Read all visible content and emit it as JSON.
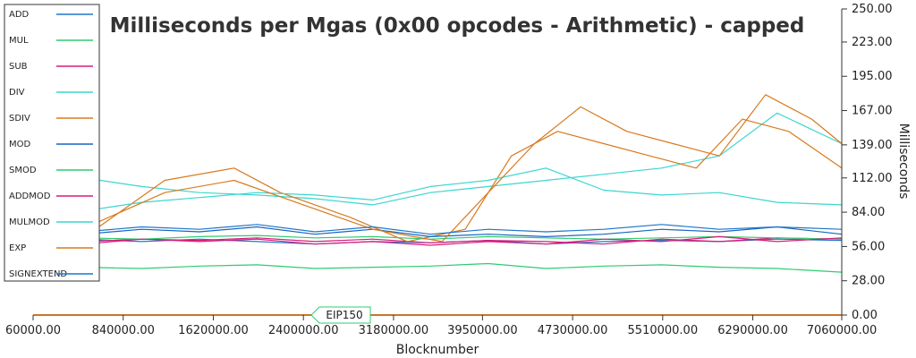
{
  "chart_data": {
    "type": "line",
    "title": "Milliseconds per Mgas (0x00 opcodes - Arithmetic) - capped",
    "xlabel": "Blocknumber",
    "ylabel": "Milliseconds",
    "xlim": [
      60000,
      7060000
    ],
    "ylim": [
      0,
      250
    ],
    "x_ticks": [
      "60000.00",
      "840000.00",
      "1620000.00",
      "2400000.00",
      "3180000.00",
      "3950000.00",
      "4730000.00",
      "5510000.00",
      "6290000.00",
      "7060000.00"
    ],
    "y_ticks": [
      "0.00",
      "28.00",
      "56.00",
      "84.00",
      "112.00",
      "139.00",
      "167.00",
      "195.00",
      "223.00",
      "250.00"
    ],
    "legend_position": "top-left",
    "grid": false,
    "series": [
      {
        "name": "ADD",
        "color": "#1f77c9",
        "points": [
          [
            60000,
            58
          ],
          [
            500000,
            62
          ],
          [
            1000000,
            60
          ],
          [
            1500000,
            62
          ],
          [
            2000000,
            60
          ],
          [
            2500000,
            58
          ],
          [
            3000000,
            60
          ],
          [
            3500000,
            59
          ],
          [
            4000000,
            61
          ],
          [
            4500000,
            58
          ],
          [
            5000000,
            60
          ],
          [
            5500000,
            61
          ],
          [
            6000000,
            60
          ],
          [
            6500000,
            62
          ],
          [
            7060000,
            61
          ]
        ]
      },
      {
        "name": "MUL",
        "color": "#2ecc71",
        "points": [
          [
            60000,
            40
          ],
          [
            500000,
            39
          ],
          [
            1000000,
            38
          ],
          [
            1500000,
            40
          ],
          [
            2000000,
            41
          ],
          [
            2500000,
            38
          ],
          [
            3000000,
            39
          ],
          [
            3500000,
            40
          ],
          [
            4000000,
            42
          ],
          [
            4500000,
            38
          ],
          [
            5000000,
            40
          ],
          [
            5500000,
            41
          ],
          [
            6000000,
            39
          ],
          [
            6500000,
            38
          ],
          [
            7060000,
            35
          ]
        ]
      },
      {
        "name": "SUB",
        "color": "#d81b7a",
        "points": [
          [
            60000,
            56
          ],
          [
            500000,
            60
          ],
          [
            1000000,
            62
          ],
          [
            1500000,
            61
          ],
          [
            2000000,
            63
          ],
          [
            2500000,
            60
          ],
          [
            3000000,
            62
          ],
          [
            3500000,
            59
          ],
          [
            4000000,
            61
          ],
          [
            4500000,
            60
          ],
          [
            5000000,
            58
          ],
          [
            5500000,
            62
          ],
          [
            6000000,
            60
          ],
          [
            6500000,
            63
          ],
          [
            7060000,
            62
          ]
        ]
      },
      {
        "name": "DIV",
        "color": "#3ad6cf",
        "points": [
          [
            60000,
            110
          ],
          [
            500000,
            112
          ],
          [
            1000000,
            105
          ],
          [
            1500000,
            100
          ],
          [
            2000000,
            98
          ],
          [
            2500000,
            95
          ],
          [
            3000000,
            90
          ],
          [
            3500000,
            100
          ],
          [
            4000000,
            105
          ],
          [
            4500000,
            110
          ],
          [
            5000000,
            115
          ],
          [
            5500000,
            120
          ],
          [
            6000000,
            130
          ],
          [
            6500000,
            165
          ],
          [
            7060000,
            140
          ]
        ]
      },
      {
        "name": "SDIV",
        "color": "#d97a1e",
        "points": [
          [
            600000,
            70
          ],
          [
            1200000,
            110
          ],
          [
            1800000,
            120
          ],
          [
            2200000,
            100
          ],
          [
            2800000,
            80
          ],
          [
            3300000,
            60
          ],
          [
            3800000,
            70
          ],
          [
            4200000,
            130
          ],
          [
            4600000,
            150
          ],
          [
            5000000,
            140
          ],
          [
            5400000,
            130
          ],
          [
            5800000,
            120
          ],
          [
            6200000,
            160
          ],
          [
            6600000,
            150
          ],
          [
            7060000,
            120
          ]
        ]
      },
      {
        "name": "MOD",
        "color": "#1565c0",
        "points": [
          [
            60000,
            60
          ],
          [
            500000,
            66
          ],
          [
            1000000,
            70
          ],
          [
            1500000,
            68
          ],
          [
            2000000,
            72
          ],
          [
            2500000,
            66
          ],
          [
            3000000,
            70
          ],
          [
            3500000,
            64
          ],
          [
            4000000,
            66
          ],
          [
            4500000,
            64
          ],
          [
            5000000,
            66
          ],
          [
            5500000,
            70
          ],
          [
            6000000,
            68
          ],
          [
            6500000,
            72
          ],
          [
            7060000,
            66
          ]
        ]
      },
      {
        "name": "SMOD",
        "color": "#2ecc71",
        "points": [
          [
            60000,
            64
          ],
          [
            500000,
            63
          ],
          [
            1000000,
            62
          ],
          [
            1500000,
            64
          ],
          [
            2000000,
            65
          ],
          [
            2500000,
            63
          ],
          [
            3000000,
            64
          ],
          [
            3500000,
            62
          ],
          [
            4000000,
            64
          ],
          [
            4500000,
            63
          ],
          [
            5000000,
            62
          ],
          [
            5500000,
            63
          ],
          [
            6000000,
            64
          ],
          [
            6500000,
            63
          ],
          [
            7060000,
            62
          ]
        ]
      },
      {
        "name": "ADDMOD",
        "color": "#d81b7a",
        "points": [
          [
            60000,
            54
          ],
          [
            500000,
            58
          ],
          [
            1000000,
            62
          ],
          [
            1500000,
            60
          ],
          [
            2000000,
            62
          ],
          [
            2500000,
            58
          ],
          [
            3000000,
            60
          ],
          [
            3500000,
            57
          ],
          [
            4000000,
            60
          ],
          [
            4500000,
            58
          ],
          [
            5000000,
            62
          ],
          [
            5500000,
            60
          ],
          [
            6000000,
            64
          ],
          [
            6500000,
            60
          ],
          [
            7060000,
            63
          ]
        ]
      },
      {
        "name": "MULMOD",
        "color": "#3ad6cf",
        "points": [
          [
            60000,
            80
          ],
          [
            500000,
            85
          ],
          [
            1000000,
            92
          ],
          [
            1500000,
            96
          ],
          [
            2000000,
            100
          ],
          [
            2500000,
            98
          ],
          [
            3000000,
            94
          ],
          [
            3500000,
            105
          ],
          [
            4000000,
            110
          ],
          [
            4500000,
            120
          ],
          [
            5000000,
            102
          ],
          [
            5500000,
            98
          ],
          [
            6000000,
            100
          ],
          [
            6500000,
            92
          ],
          [
            7060000,
            90
          ]
        ]
      },
      {
        "name": "EXP",
        "color": "#d97a1e",
        "points": [
          [
            600000,
            75
          ],
          [
            1200000,
            100
          ],
          [
            1800000,
            110
          ],
          [
            2400000,
            90
          ],
          [
            3000000,
            70
          ],
          [
            3600000,
            60
          ],
          [
            4000000,
            100
          ],
          [
            4400000,
            140
          ],
          [
            4800000,
            170
          ],
          [
            5200000,
            150
          ],
          [
            5600000,
            140
          ],
          [
            6000000,
            130
          ],
          [
            6400000,
            180
          ],
          [
            6800000,
            160
          ],
          [
            7060000,
            140
          ]
        ]
      },
      {
        "name": "SIGNEXTEND",
        "color": "#1f77c9",
        "points": [
          [
            60000,
            62
          ],
          [
            500000,
            68
          ],
          [
            1000000,
            72
          ],
          [
            1500000,
            70
          ],
          [
            2000000,
            74
          ],
          [
            2500000,
            68
          ],
          [
            3000000,
            72
          ],
          [
            3500000,
            66
          ],
          [
            4000000,
            70
          ],
          [
            4500000,
            68
          ],
          [
            5000000,
            70
          ],
          [
            5500000,
            74
          ],
          [
            6000000,
            70
          ],
          [
            6500000,
            72
          ],
          [
            7060000,
            70
          ]
        ]
      }
    ],
    "annotation": {
      "label": "EIP150",
      "x": 2463000
    }
  }
}
